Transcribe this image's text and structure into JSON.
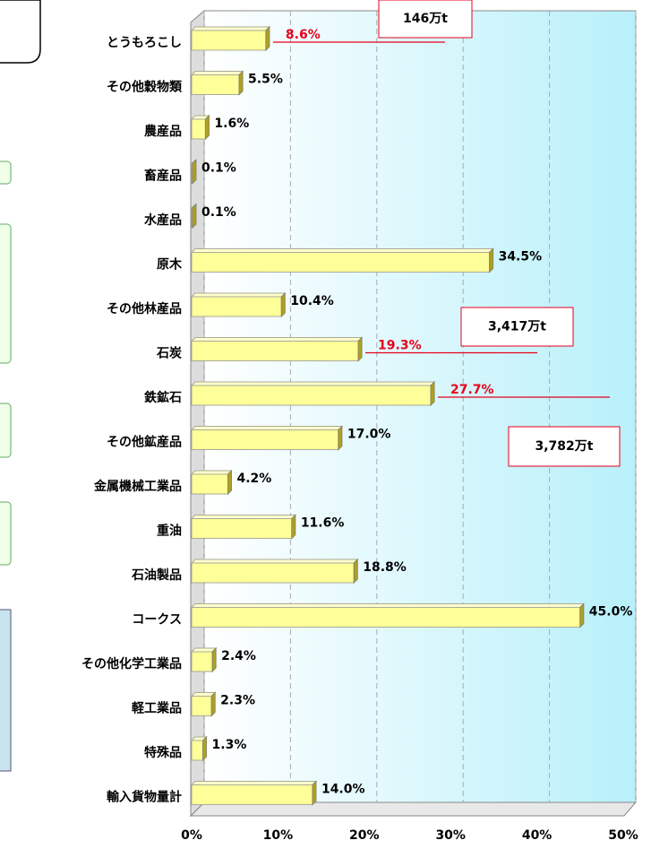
{
  "chart_data": {
    "type": "bar",
    "categories": [
      "とうもろこし",
      "その他穀物類",
      "農産品",
      "畜産品",
      "水産品",
      "原木",
      "その他林産品",
      "石炭",
      "鉄鉱石",
      "その他鉱産品",
      "金属機械工業品",
      "重油",
      "石油製品",
      "コークス",
      "その他化学工業品",
      "軽工業品",
      "特殊品",
      "輸入貨物量計"
    ],
    "values": [
      8.6,
      5.5,
      1.6,
      0.1,
      0.1,
      34.5,
      10.4,
      19.3,
      27.7,
      17.0,
      4.2,
      11.6,
      18.8,
      45.0,
      2.4,
      2.3,
      1.3,
      14.0
    ],
    "value_labels": [
      "8.6%",
      "5.5%",
      "1.6%",
      "0.1%",
      "0.1%",
      "34.5%",
      "10.4%",
      "19.3%",
      "27.7%",
      "17.0%",
      "4.2%",
      "11.6%",
      "18.8%",
      "45.0%",
      "2.4%",
      "2.3%",
      "1.3%",
      "14.0%"
    ],
    "value_label_colors": [
      "#e8001c",
      "#000",
      "#000",
      "#000",
      "#000",
      "#000",
      "#000",
      "#e8001c",
      "#e8001c",
      "#000",
      "#000",
      "#000",
      "#000",
      "#000",
      "#000",
      "#000",
      "#000",
      "#000"
    ],
    "color": "#ffff99",
    "annotations": [
      "146万t",
      "3,417万t",
      "3,782万t"
    ],
    "xlim": [
      0,
      50
    ],
    "xticks": [
      {
        "value": 0,
        "label": "0%"
      },
      {
        "value": 10,
        "label": "10%"
      },
      {
        "value": 20,
        "label": "20%"
      },
      {
        "value": 30,
        "label": "30%"
      },
      {
        "value": 40,
        "label": "40%"
      },
      {
        "value": 50,
        "label": "50%"
      }
    ],
    "grid": true
  }
}
